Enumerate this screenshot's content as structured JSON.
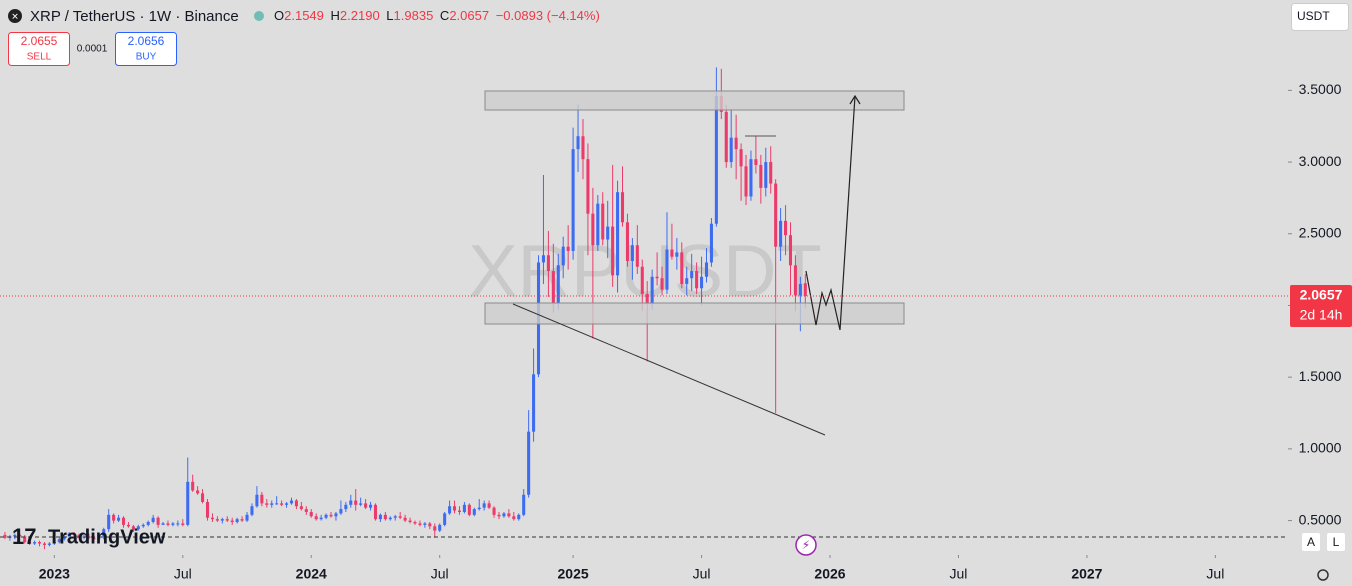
{
  "header": {
    "symbol": "XRP / TetherUS · 1W · Binance",
    "o_label": "O",
    "open": "2.1549",
    "h_label": "H",
    "high": "2.2190",
    "l_label": "L",
    "low": "1.9835",
    "c_label": "C",
    "close": "2.0657",
    "change": "−0.0893 (−4.14%)"
  },
  "trade": {
    "sell_price": "2.0655",
    "sell": "SELL",
    "spread": "0.0001",
    "buy_price": "2.0656",
    "buy": "BUY"
  },
  "currency": "USDT",
  "brand": "TradingView",
  "scale_buttons": [
    "A",
    "L"
  ],
  "chart_data": {
    "type": "candlestick",
    "watermark": "XRPUSDT",
    "up_color": "#3d6cf0",
    "down_color": "#ec3a6a",
    "grid": false,
    "xlim": [
      -1,
      259.7
    ],
    "xticks": [
      {
        "value": 10,
        "label": "2023"
      },
      {
        "value": 36,
        "label": "Jul"
      },
      {
        "value": 62,
        "label": "2024"
      },
      {
        "value": 88,
        "label": "Jul"
      },
      {
        "value": 115,
        "label": "2025"
      },
      {
        "value": 141,
        "label": "Jul"
      },
      {
        "value": 167,
        "label": "2026"
      },
      {
        "value": 193,
        "label": "Jul"
      },
      {
        "value": 219,
        "label": "2027"
      },
      {
        "value": 245,
        "label": "Jul"
      }
    ],
    "ylim": [
      0.26,
      4.13
    ],
    "yticks": [
      {
        "value": 0.5,
        "label": "0.5000"
      },
      {
        "value": 1,
        "label": "1.0000"
      },
      {
        "value": 1.5,
        "label": "1.5000"
      },
      {
        "value": 2,
        "label": "2.0000"
      },
      {
        "value": 2.5,
        "label": "2.5000"
      },
      {
        "value": 3,
        "label": "3.0000"
      },
      {
        "value": 3.5,
        "label": "3.5000"
      }
    ],
    "last_price": {
      "value": 2.0657,
      "label": "2.0657"
    },
    "countdown": "2d 14h",
    "candles": [
      [
        0.4,
        0.42,
        0.37,
        0.38
      ],
      [
        0.38,
        0.4,
        0.36,
        0.39
      ],
      [
        0.39,
        0.41,
        0.37,
        0.4
      ],
      [
        0.4,
        0.41,
        0.38,
        0.39
      ],
      [
        0.39,
        0.4,
        0.34,
        0.35
      ],
      [
        0.35,
        0.37,
        0.33,
        0.34
      ],
      [
        0.34,
        0.36,
        0.33,
        0.35
      ],
      [
        0.35,
        0.36,
        0.32,
        0.34
      ],
      [
        0.34,
        0.35,
        0.3,
        0.33
      ],
      [
        0.33,
        0.35,
        0.32,
        0.34
      ],
      [
        0.34,
        0.35,
        0.33,
        0.35
      ],
      [
        0.35,
        0.38,
        0.34,
        0.37
      ],
      [
        0.37,
        0.4,
        0.36,
        0.39
      ],
      [
        0.39,
        0.42,
        0.38,
        0.41
      ],
      [
        0.41,
        0.42,
        0.39,
        0.4
      ],
      [
        0.4,
        0.41,
        0.37,
        0.38
      ],
      [
        0.38,
        0.4,
        0.37,
        0.39
      ],
      [
        0.39,
        0.41,
        0.37,
        0.38
      ],
      [
        0.38,
        0.39,
        0.36,
        0.37
      ],
      [
        0.37,
        0.4,
        0.36,
        0.38
      ],
      [
        0.38,
        0.45,
        0.37,
        0.44
      ],
      [
        0.44,
        0.58,
        0.42,
        0.54
      ],
      [
        0.54,
        0.55,
        0.48,
        0.5
      ],
      [
        0.5,
        0.54,
        0.49,
        0.52
      ],
      [
        0.52,
        0.53,
        0.45,
        0.47
      ],
      [
        0.47,
        0.49,
        0.45,
        0.46
      ],
      [
        0.46,
        0.47,
        0.42,
        0.44
      ],
      [
        0.44,
        0.47,
        0.43,
        0.46
      ],
      [
        0.46,
        0.48,
        0.45,
        0.47
      ],
      [
        0.47,
        0.5,
        0.46,
        0.49
      ],
      [
        0.49,
        0.54,
        0.48,
        0.52
      ],
      [
        0.52,
        0.53,
        0.45,
        0.47
      ],
      [
        0.47,
        0.49,
        0.47,
        0.48
      ],
      [
        0.48,
        0.5,
        0.46,
        0.47
      ],
      [
        0.47,
        0.49,
        0.46,
        0.48
      ],
      [
        0.48,
        0.5,
        0.46,
        0.48
      ],
      [
        0.48,
        0.51,
        0.46,
        0.47
      ],
      [
        0.47,
        0.94,
        0.46,
        0.77
      ],
      [
        0.77,
        0.82,
        0.7,
        0.71
      ],
      [
        0.71,
        0.74,
        0.68,
        0.69
      ],
      [
        0.69,
        0.72,
        0.62,
        0.63
      ],
      [
        0.63,
        0.65,
        0.5,
        0.52
      ],
      [
        0.52,
        0.55,
        0.49,
        0.51
      ],
      [
        0.51,
        0.53,
        0.49,
        0.5
      ],
      [
        0.5,
        0.52,
        0.48,
        0.51
      ],
      [
        0.51,
        0.53,
        0.49,
        0.5
      ],
      [
        0.5,
        0.52,
        0.47,
        0.49
      ],
      [
        0.49,
        0.52,
        0.48,
        0.51
      ],
      [
        0.51,
        0.53,
        0.49,
        0.5
      ],
      [
        0.5,
        0.56,
        0.49,
        0.54
      ],
      [
        0.54,
        0.62,
        0.53,
        0.6
      ],
      [
        0.6,
        0.74,
        0.59,
        0.68
      ],
      [
        0.68,
        0.7,
        0.6,
        0.62
      ],
      [
        0.62,
        0.65,
        0.59,
        0.61
      ],
      [
        0.61,
        0.64,
        0.59,
        0.62
      ],
      [
        0.62,
        0.67,
        0.61,
        0.62
      ],
      [
        0.62,
        0.64,
        0.6,
        0.61
      ],
      [
        0.61,
        0.63,
        0.59,
        0.62
      ],
      [
        0.62,
        0.66,
        0.61,
        0.64
      ],
      [
        0.64,
        0.65,
        0.58,
        0.6
      ],
      [
        0.6,
        0.63,
        0.57,
        0.58
      ],
      [
        0.58,
        0.6,
        0.54,
        0.56
      ],
      [
        0.56,
        0.58,
        0.52,
        0.53
      ],
      [
        0.53,
        0.55,
        0.5,
        0.51
      ],
      [
        0.51,
        0.54,
        0.5,
        0.52
      ],
      [
        0.52,
        0.55,
        0.51,
        0.54
      ],
      [
        0.54,
        0.56,
        0.52,
        0.53
      ],
      [
        0.53,
        0.56,
        0.5,
        0.55
      ],
      [
        0.55,
        0.64,
        0.54,
        0.58
      ],
      [
        0.58,
        0.63,
        0.56,
        0.61
      ],
      [
        0.61,
        0.68,
        0.59,
        0.64
      ],
      [
        0.64,
        0.72,
        0.57,
        0.61
      ],
      [
        0.61,
        0.66,
        0.6,
        0.62
      ],
      [
        0.62,
        0.65,
        0.58,
        0.59
      ],
      [
        0.59,
        0.63,
        0.57,
        0.61
      ],
      [
        0.61,
        0.62,
        0.5,
        0.51
      ],
      [
        0.51,
        0.55,
        0.49,
        0.54
      ],
      [
        0.54,
        0.56,
        0.5,
        0.51
      ],
      [
        0.51,
        0.53,
        0.5,
        0.52
      ],
      [
        0.52,
        0.54,
        0.5,
        0.53
      ],
      [
        0.53,
        0.56,
        0.51,
        0.52
      ],
      [
        0.52,
        0.54,
        0.49,
        0.5
      ],
      [
        0.5,
        0.52,
        0.48,
        0.49
      ],
      [
        0.49,
        0.5,
        0.47,
        0.48
      ],
      [
        0.48,
        0.5,
        0.46,
        0.47
      ],
      [
        0.47,
        0.49,
        0.45,
        0.48
      ],
      [
        0.48,
        0.49,
        0.44,
        0.46
      ],
      [
        0.46,
        0.48,
        0.38,
        0.43
      ],
      [
        0.43,
        0.48,
        0.42,
        0.47
      ],
      [
        0.47,
        0.56,
        0.46,
        0.55
      ],
      [
        0.55,
        0.64,
        0.54,
        0.6
      ],
      [
        0.6,
        0.64,
        0.55,
        0.57
      ],
      [
        0.57,
        0.6,
        0.54,
        0.56
      ],
      [
        0.56,
        0.63,
        0.55,
        0.61
      ],
      [
        0.61,
        0.62,
        0.53,
        0.54
      ],
      [
        0.54,
        0.59,
        0.53,
        0.58
      ],
      [
        0.58,
        0.65,
        0.57,
        0.59
      ],
      [
        0.59,
        0.64,
        0.57,
        0.62
      ],
      [
        0.62,
        0.64,
        0.58,
        0.59
      ],
      [
        0.59,
        0.6,
        0.52,
        0.54
      ],
      [
        0.54,
        0.56,
        0.51,
        0.53
      ],
      [
        0.53,
        0.56,
        0.52,
        0.55
      ],
      [
        0.55,
        0.58,
        0.52,
        0.53
      ],
      [
        0.53,
        0.56,
        0.5,
        0.51
      ],
      [
        0.51,
        0.55,
        0.5,
        0.54
      ],
      [
        0.54,
        0.72,
        0.53,
        0.68
      ],
      [
        0.68,
        1.27,
        0.66,
        1.12
      ],
      [
        1.12,
        1.7,
        1.05,
        1.52
      ],
      [
        1.52,
        2.35,
        1.5,
        2.3
      ],
      [
        2.3,
        2.91,
        2.15,
        2.35
      ],
      [
        2.35,
        2.52,
        2.06,
        2.24
      ],
      [
        2.24,
        2.43,
        1.95,
        2.02
      ],
      [
        2.02,
        2.36,
        1.97,
        2.28
      ],
      [
        2.28,
        2.48,
        2.19,
        2.41
      ],
      [
        2.41,
        2.56,
        2.25,
        2.38
      ],
      [
        2.38,
        3.24,
        2.32,
        3.09
      ],
      [
        3.09,
        3.4,
        2.93,
        3.18
      ],
      [
        3.18,
        3.3,
        2.88,
        3.02
      ],
      [
        3.02,
        3.13,
        2.35,
        2.64
      ],
      [
        2.64,
        2.82,
        1.77,
        2.42
      ],
      [
        2.42,
        2.77,
        2.38,
        2.71
      ],
      [
        2.71,
        2.79,
        2.42,
        2.46
      ],
      [
        2.46,
        2.73,
        2.33,
        2.55
      ],
      [
        2.55,
        2.98,
        2.13,
        2.21
      ],
      [
        2.21,
        2.87,
        2.09,
        2.79
      ],
      [
        2.79,
        2.97,
        2.55,
        2.58
      ],
      [
        2.58,
        2.64,
        2.27,
        2.31
      ],
      [
        2.31,
        2.47,
        2.18,
        2.42
      ],
      [
        2.42,
        2.56,
        2.22,
        2.27
      ],
      [
        2.27,
        2.32,
        1.96,
        2.08
      ],
      [
        2.08,
        2.17,
        1.61,
        2.01
      ],
      [
        2.01,
        2.25,
        1.97,
        2.2
      ],
      [
        2.2,
        2.37,
        2.14,
        2.19
      ],
      [
        2.19,
        2.27,
        2.07,
        2.11
      ],
      [
        2.11,
        2.65,
        2.08,
        2.39
      ],
      [
        2.39,
        2.57,
        2.32,
        2.34
      ],
      [
        2.34,
        2.47,
        2.25,
        2.37
      ],
      [
        2.37,
        2.44,
        2.12,
        2.15
      ],
      [
        2.15,
        2.27,
        2.07,
        2.19
      ],
      [
        2.19,
        2.36,
        2.1,
        2.24
      ],
      [
        2.24,
        2.3,
        2.08,
        2.12
      ],
      [
        2.12,
        2.34,
        2.0,
        2.2
      ],
      [
        2.2,
        2.4,
        2.16,
        2.3
      ],
      [
        2.3,
        2.61,
        2.27,
        2.57
      ],
      [
        2.57,
        3.66,
        2.55,
        3.46
      ],
      [
        3.46,
        3.65,
        3.3,
        3.35
      ],
      [
        3.35,
        3.4,
        2.96,
        3.0
      ],
      [
        3.0,
        3.37,
        2.96,
        3.17
      ],
      [
        3.17,
        3.33,
        2.88,
        3.09
      ],
      [
        3.09,
        3.13,
        2.73,
        2.97
      ],
      [
        2.97,
        3.05,
        2.7,
        2.76
      ],
      [
        2.76,
        3.08,
        2.73,
        3.02
      ],
      [
        3.02,
        3.18,
        2.92,
        2.98
      ],
      [
        2.98,
        3.05,
        2.71,
        2.82
      ],
      [
        2.82,
        3.1,
        2.76,
        3.0
      ],
      [
        3.0,
        3.11,
        2.78,
        2.85
      ],
      [
        2.85,
        2.88,
        1.25,
        2.41
      ],
      [
        2.41,
        2.68,
        2.31,
        2.59
      ],
      [
        2.59,
        2.7,
        2.35,
        2.49
      ],
      [
        2.49,
        2.58,
        2.07,
        2.28
      ],
      [
        2.28,
        2.35,
        1.96,
        2.07
      ],
      [
        2.07,
        2.2,
        1.82,
        2.15
      ],
      [
        2.1549,
        2.219,
        1.9835,
        2.0657
      ]
    ]
  }
}
